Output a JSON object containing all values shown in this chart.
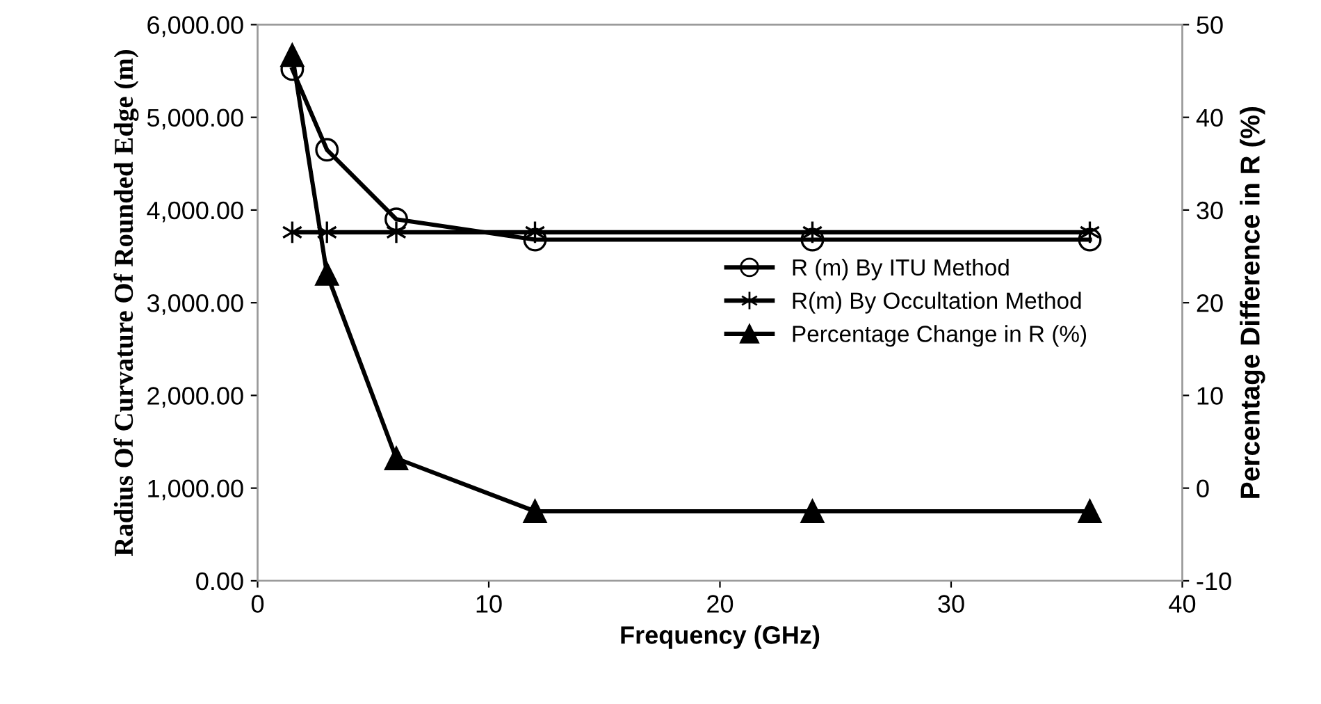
{
  "chart_data": {
    "type": "line",
    "xlabel": "Frequency (GHz)",
    "ylabel": "Radius Of Curvature Of Rounded Edge (m)",
    "y2label": "Percentage Difference in R (%)",
    "x": [
      1.5,
      3,
      6,
      12,
      24,
      36
    ],
    "series": [
      {
        "name": "R (m) By ITU Method",
        "color": "#000000",
        "marker": "circle",
        "values": [
          5520,
          4650,
          3900,
          3680,
          3680,
          3680
        ]
      },
      {
        "name": "R(m) By Occultation Method",
        "color": "#000000",
        "marker": "cross",
        "values": [
          3760,
          3760,
          3760,
          3760,
          3760,
          3760
        ]
      },
      {
        "name": "Percentage Change in R (%)",
        "color": "#000000",
        "marker": "triangle",
        "axis": "y2",
        "values": [
          46.7,
          23.1,
          3.2,
          -2.5,
          -2.5,
          -2.5
        ]
      }
    ],
    "xlim": [
      0,
      40
    ],
    "xticks": [
      0,
      10,
      20,
      30,
      40
    ],
    "ylim": [
      0,
      6000
    ],
    "yticks": [
      {
        "value": 0,
        "label": "0.00"
      },
      {
        "value": 1000,
        "label": "1,000.00"
      },
      {
        "value": 2000,
        "label": "2,000.00"
      },
      {
        "value": 3000,
        "label": "3,000.00"
      },
      {
        "value": 4000,
        "label": "4,000.00"
      },
      {
        "value": 5000,
        "label": "5,000.00"
      },
      {
        "value": 6000,
        "label": "6,000.00"
      }
    ],
    "y2lim": [
      -10,
      50
    ],
    "y2ticks": [
      -10,
      0,
      10,
      20,
      30,
      40,
      50
    ],
    "grid": false,
    "legend": "right",
    "line_style": "solid"
  }
}
